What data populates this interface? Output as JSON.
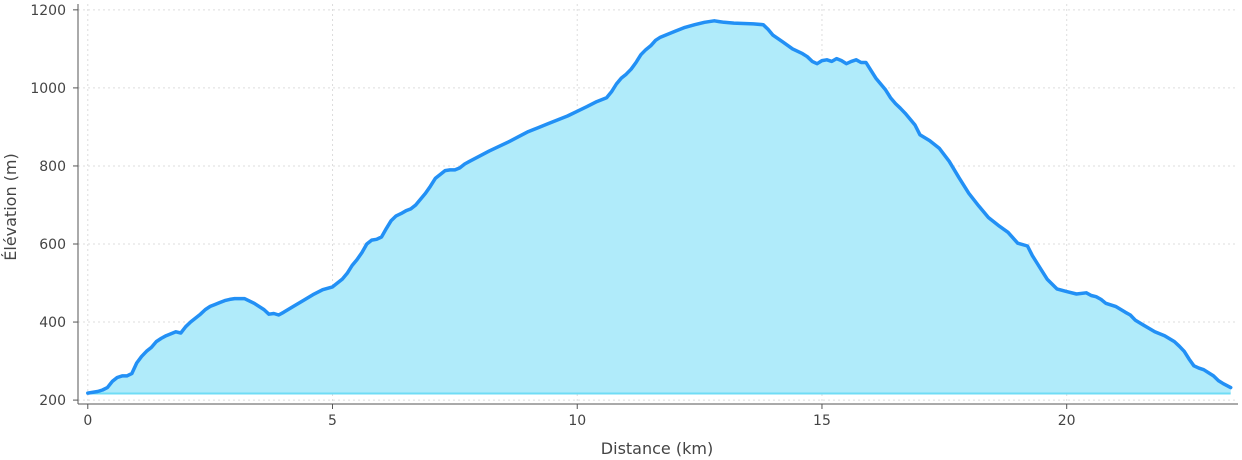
{
  "chart_data": {
    "type": "area",
    "title": "",
    "xlabel": "Distance (km)",
    "ylabel": "Élévation (m)",
    "xlim": [
      -0.2,
      23.5
    ],
    "ylim": [
      190,
      1215
    ],
    "baseline": 217,
    "grid": true,
    "legend": "none",
    "x_ticks": [
      0,
      5,
      10,
      15,
      20
    ],
    "y_ticks": [
      200,
      400,
      600,
      800,
      1000,
      1200
    ],
    "colors": {
      "line": "#2290f5",
      "fill": "#b0ebfa",
      "baseline": "#6fdcf5",
      "grid": "#dddddd",
      "axis": "#555555"
    },
    "series": [
      {
        "x": [
          0,
          0.2,
          0.3,
          0.4,
          0.5,
          0.6,
          0.7,
          0.8,
          0.9,
          1.0,
          1.1,
          1.2,
          1.3,
          1.4,
          1.5,
          1.6,
          1.7,
          1.8,
          1.9,
          2.0,
          2.1,
          2.2,
          2.3,
          2.4,
          2.5,
          2.6,
          2.7,
          2.8,
          2.9,
          3.0,
          3.1,
          3.2,
          3.4,
          3.6,
          3.7,
          3.8,
          3.9,
          4.0,
          4.2,
          4.4,
          4.6,
          4.8,
          5.0,
          5.2,
          5.3,
          5.4,
          5.5,
          5.6,
          5.7,
          5.8,
          5.9,
          6.0,
          6.1,
          6.2,
          6.3,
          6.4,
          6.5,
          6.6,
          6.7,
          6.8,
          6.9,
          7.0,
          7.1,
          7.2,
          7.3,
          7.4,
          7.5,
          7.6,
          7.7,
          7.8,
          8.0,
          8.2,
          8.4,
          8.6,
          8.8,
          9.0,
          9.2,
          9.4,
          9.6,
          9.8,
          10.0,
          10.2,
          10.4,
          10.6,
          10.7,
          10.8,
          10.9,
          11.0,
          11.1,
          11.2,
          11.3,
          11.4,
          11.5,
          11.6,
          11.7,
          11.8,
          11.9,
          12.0,
          12.2,
          12.4,
          12.6,
          12.8,
          12.9,
          13.0,
          13.2,
          13.4,
          13.6,
          13.8,
          13.9,
          14.0,
          14.2,
          14.4,
          14.6,
          14.7,
          14.8,
          14.9,
          15.0,
          15.1,
          15.2,
          15.3,
          15.4,
          15.5,
          15.6,
          15.7,
          15.8,
          15.9,
          16.0,
          16.1,
          16.2,
          16.3,
          16.4,
          16.5,
          16.6,
          16.7,
          16.8,
          16.9,
          17.0,
          17.2,
          17.4,
          17.6,
          17.8,
          18.0,
          18.2,
          18.4,
          18.6,
          18.8,
          19.0,
          19.2,
          19.3,
          19.4,
          19.5,
          19.6,
          19.8,
          20.0,
          20.2,
          20.4,
          20.5,
          20.6,
          20.7,
          20.8,
          21.0,
          21.2,
          21.3,
          21.4,
          21.6,
          21.8,
          22.0,
          22.2,
          22.3,
          22.4,
          22.5,
          22.6,
          22.7,
          22.8,
          23.0,
          23.1,
          23.2,
          23.35
        ],
        "y": [
          218,
          222,
          226,
          232,
          248,
          258,
          262,
          262,
          268,
          295,
          312,
          325,
          335,
          350,
          358,
          365,
          370,
          375,
          372,
          388,
          400,
          410,
          420,
          432,
          440,
          445,
          450,
          455,
          458,
          460,
          460,
          460,
          448,
          432,
          420,
          422,
          418,
          425,
          440,
          455,
          470,
          483,
          490,
          510,
          525,
          545,
          560,
          578,
          600,
          610,
          612,
          618,
          640,
          660,
          672,
          678,
          685,
          690,
          700,
          715,
          730,
          748,
          768,
          778,
          788,
          790,
          790,
          795,
          805,
          812,
          825,
          838,
          850,
          862,
          875,
          888,
          898,
          908,
          918,
          928,
          940,
          952,
          965,
          975,
          990,
          1010,
          1025,
          1035,
          1048,
          1065,
          1085,
          1098,
          1108,
          1122,
          1130,
          1135,
          1140,
          1145,
          1155,
          1162,
          1168,
          1172,
          1170,
          1168,
          1166,
          1165,
          1164,
          1162,
          1150,
          1135,
          1118,
          1100,
          1088,
          1080,
          1068,
          1062,
          1070,
          1072,
          1068,
          1075,
          1070,
          1062,
          1068,
          1072,
          1065,
          1065,
          1045,
          1025,
          1010,
          995,
          975,
          960,
          948,
          935,
          920,
          905,
          880,
          865,
          845,
          812,
          770,
          730,
          698,
          668,
          648,
          630,
          602,
          595,
          570,
          550,
          530,
          510,
          485,
          478,
          472,
          475,
          468,
          465,
          458,
          448,
          440,
          425,
          418,
          405,
          390,
          375,
          365,
          350,
          338,
          325,
          305,
          288,
          282,
          278,
          262,
          250,
          242,
          232
        ]
      }
    ]
  }
}
